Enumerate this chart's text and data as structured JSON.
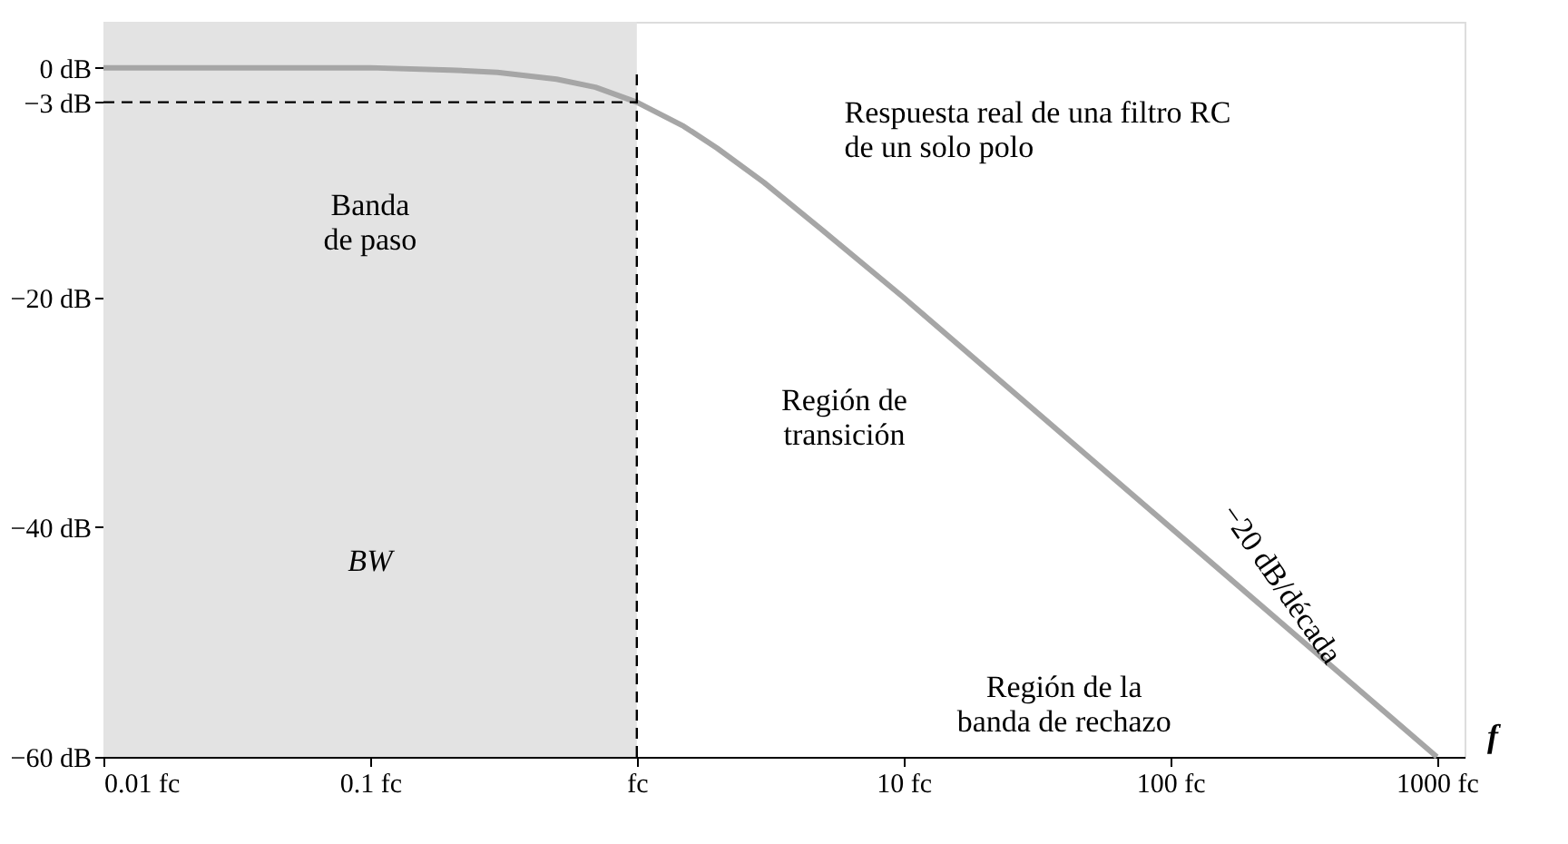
{
  "chart_data": {
    "type": "line",
    "xlabel": "f",
    "log": "x",
    "grid": false,
    "marker": "none",
    "line_style": "solid",
    "x": [
      0.01,
      0.1,
      0.2,
      0.3,
      0.5,
      0.7,
      1,
      1.5,
      2,
      3,
      5,
      10,
      100,
      1000
    ],
    "series": [
      {
        "color": "#a6a6a6",
        "values": [
          0,
          0,
          -0.2,
          -0.4,
          -1,
          -1.7,
          -3,
          -5.1,
          -7,
          -10,
          -14.2,
          -20,
          -40,
          -60
        ]
      }
    ],
    "xlim": [
      0.01,
      1270
    ],
    "ylim": [
      -60,
      4
    ],
    "xticks": [
      {
        "value": 0.01,
        "label": "0.01 fc"
      },
      {
        "value": 0.1,
        "label": "0.1 fc"
      },
      {
        "value": 1,
        "label": "fc"
      },
      {
        "value": 10,
        "label": "10 fc"
      },
      {
        "value": 100,
        "label": "100 fc"
      },
      {
        "value": 1000,
        "label": "1000 fc"
      }
    ],
    "yticks": [
      {
        "value": 0,
        "label": "0 dB"
      },
      {
        "value": -3,
        "label": "−3 dB"
      },
      {
        "value": -20,
        "label": "−20 dB"
      },
      {
        "value": -40,
        "label": "−40 dB"
      },
      {
        "value": -60,
        "label": "−60 dB"
      }
    ],
    "ref_lines": [
      {
        "axis": "y",
        "value": -3,
        "color": "#000000",
        "line_style": "dashed"
      },
      {
        "axis": "x",
        "value": 1,
        "color": "#000000",
        "line_style": "dashed"
      }
    ],
    "bands": [
      {
        "axis": "x",
        "from": 0.01,
        "to": 1,
        "color": "#e3e3e3"
      }
    ],
    "annotations": [
      "Banda\nde paso",
      "BW",
      "Respuesta real de una filtro RC\nde un solo polo",
      "Región de\ntransición",
      "−20 dB/década",
      "Región de la\nbanda de rechazo"
    ]
  }
}
